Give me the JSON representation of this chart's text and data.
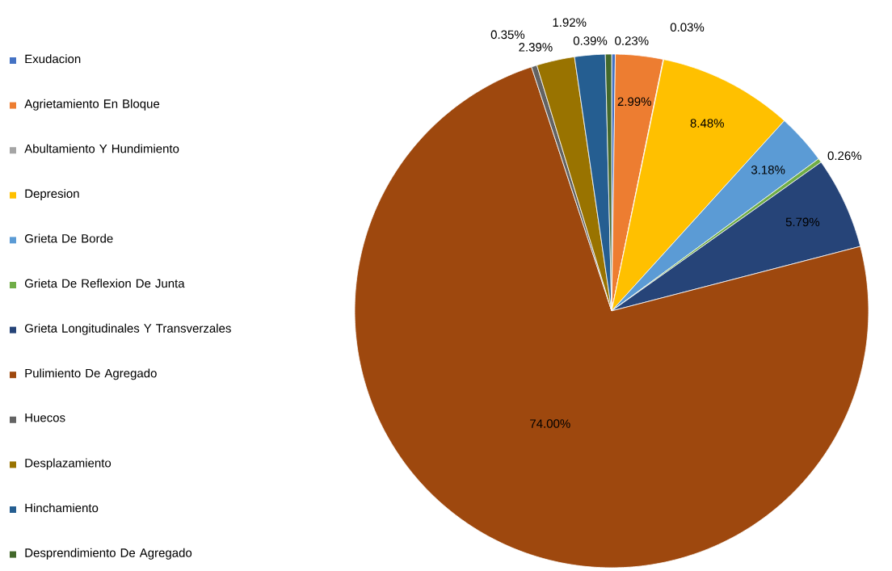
{
  "chart_data": {
    "type": "pie",
    "categories": [
      "Exudacion",
      "Agrietamiento En Bloque",
      "Abultamiento Y Hundimiento",
      "Depresion",
      "Grieta De Borde",
      "Grieta De Reflexion De Junta",
      "Grieta Longitudinales Y Transverzales",
      "Pulimiento De Agregado",
      "Huecos",
      "Desplazamiento",
      "Hinchamiento",
      "Desprendimiento De Agregado"
    ],
    "values": [
      0.23,
      2.99,
      0.03,
      8.48,
      3.18,
      0.26,
      5.79,
      74.0,
      0.35,
      2.39,
      1.92,
      0.39
    ],
    "colors": [
      "#4472c4",
      "#ed7d31",
      "#a5a5a5",
      "#ffc000",
      "#5b9bd5",
      "#70ad47",
      "#264478",
      "#9e480e",
      "#636363",
      "#997300",
      "#255e91",
      "#43682b"
    ],
    "value_labels": [
      "0.23%",
      "2.99%",
      "0.03%",
      "8.48%",
      "3.18%",
      "0.26%",
      "5.79%",
      "74.00%",
      "0.35%",
      "2.39%",
      "1.92%",
      "0.39%"
    ],
    "legend": "left"
  }
}
